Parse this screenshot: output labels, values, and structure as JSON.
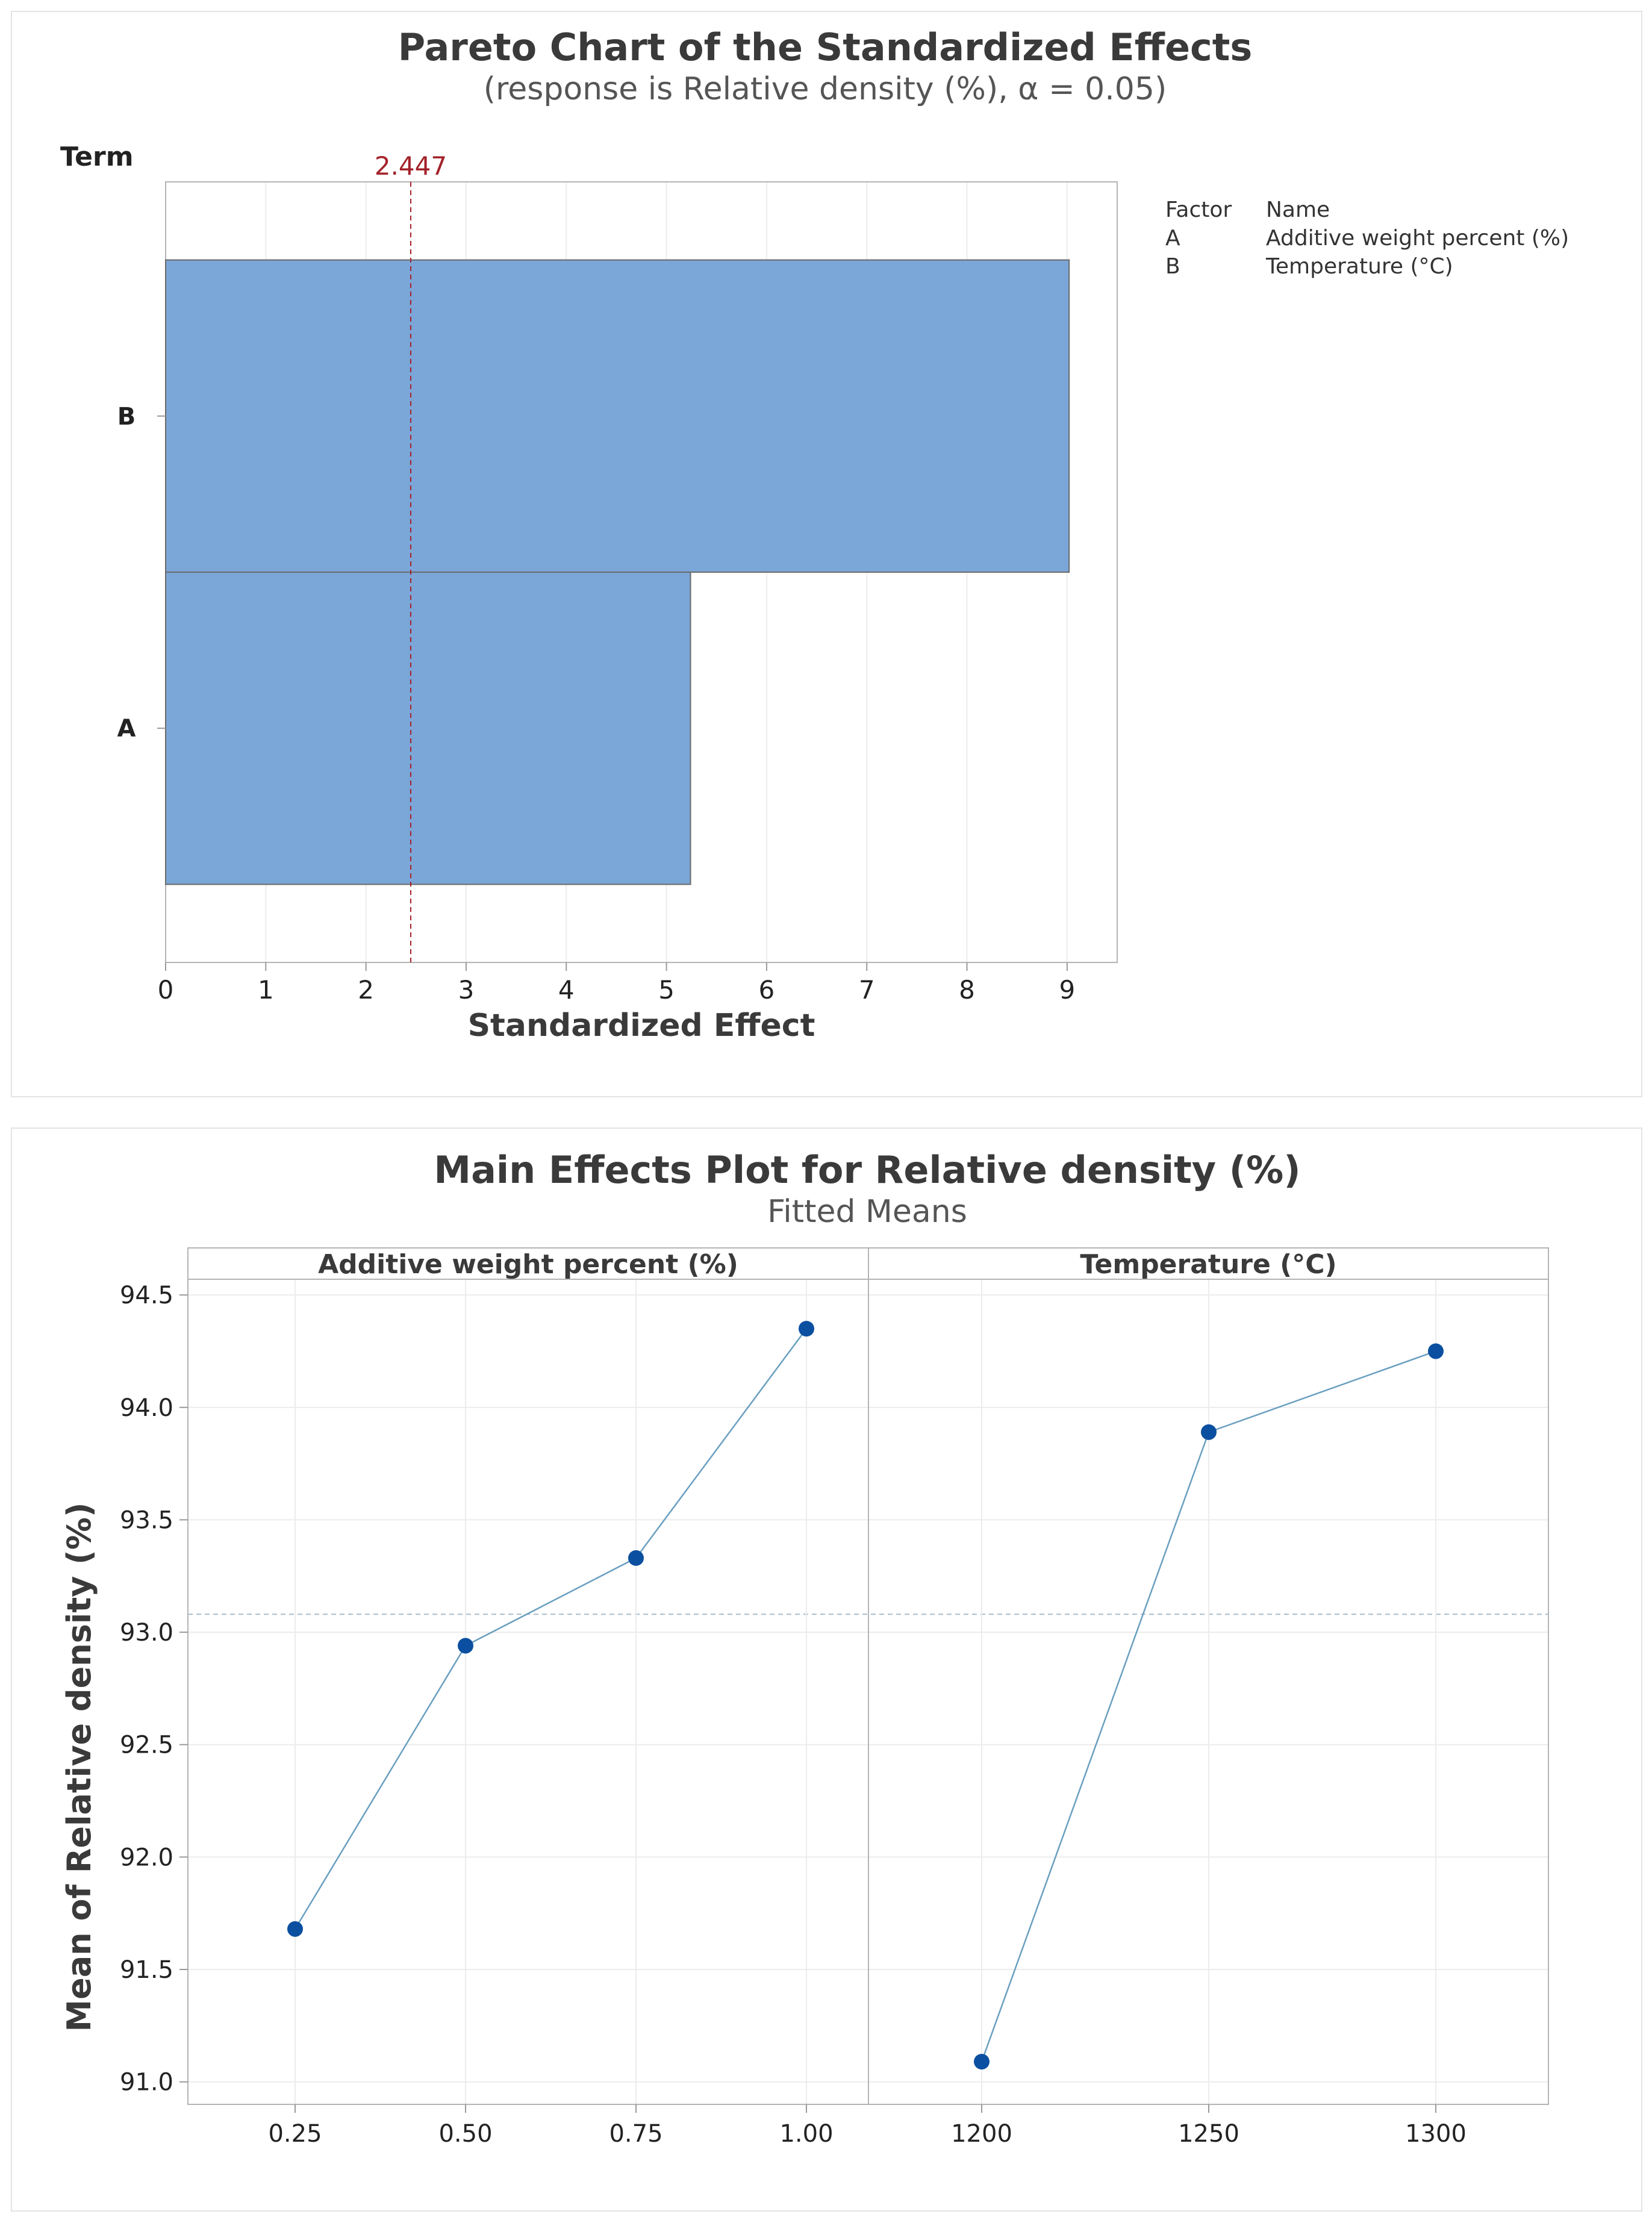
{
  "chart_data": [
    {
      "type": "bar",
      "orientation": "horizontal",
      "title": "Pareto Chart of the Standardized Effects",
      "subtitle": "(response is Relative density (%), α = 0.05)",
      "xlabel": "Standardized Effect",
      "ylabel": "Term",
      "categories": [
        "B",
        "A"
      ],
      "values": [
        9.02,
        5.24
      ],
      "xlim": [
        0,
        9.5
      ],
      "xticks": [
        "0",
        "1",
        "2",
        "3",
        "4",
        "5",
        "6",
        "7",
        "8",
        "9"
      ],
      "reference_line": {
        "value": 2.447,
        "label": "2.447",
        "color": "#a3222a"
      },
      "bar_color": "#7ba6d8",
      "grid": true,
      "legend": {
        "placement": "top-right",
        "headers": [
          "Factor",
          "Name"
        ],
        "rows": [
          {
            "factor": "A",
            "name": "Additive weight percent (%)"
          },
          {
            "factor": "B",
            "name": "Temperature (°C)"
          }
        ]
      }
    },
    {
      "type": "line",
      "title": "Main Effects Plot for Relative density (%)",
      "subtitle": "Fitted Means",
      "ylabel": "Mean of Relative density (%)",
      "ylim": [
        90.9,
        94.57
      ],
      "yticks": [
        "91.0",
        "91.5",
        "92.0",
        "92.5",
        "93.0",
        "93.5",
        "94.0",
        "94.5"
      ],
      "mean_line": 93.08,
      "line_color": "#6a9fc0",
      "point_color": "#0b4fa0",
      "grid": true,
      "panels": [
        {
          "name": "Additive weight percent (%)",
          "x": [
            "0.25",
            "0.50",
            "0.75",
            "1.00"
          ],
          "y": [
            91.68,
            92.94,
            93.33,
            94.35
          ]
        },
        {
          "name": "Temperature (°C)",
          "x": [
            "1200",
            "1250",
            "1300"
          ],
          "y": [
            91.09,
            93.89,
            94.25
          ]
        }
      ]
    }
  ]
}
